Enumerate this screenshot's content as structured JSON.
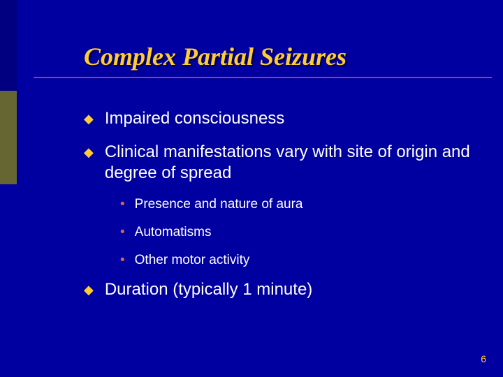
{
  "colors": {
    "background": "#0000a0",
    "accent_dark": "#000080",
    "accent_olive": "#666633",
    "title": "#ffcc33",
    "rule": "#cc3333",
    "text": "#ffffff",
    "bullet_l1": "#ffcc33",
    "bullet_l2": "#cc6666",
    "page_num": "#ffcc33"
  },
  "typography": {
    "title_family": "Times New Roman",
    "title_style": "italic bold",
    "title_size_pt": 28,
    "body_family": "Arial",
    "l1_size_pt": 18,
    "l2_size_pt": 14,
    "page_num_size_pt": 10
  },
  "title": "Complex Partial Seizures",
  "bullets": {
    "b1": "Impaired consciousness",
    "b2": "Clinical manifestations vary with site of origin and degree of spread",
    "b2_sub": {
      "s1": "Presence and nature of aura",
      "s2": "Automatisms",
      "s3": "Other motor activity"
    },
    "b3": "Duration (typically 1 minute)"
  },
  "page_number": "6",
  "glyphs": {
    "diamond": "◆",
    "dot": "•"
  }
}
